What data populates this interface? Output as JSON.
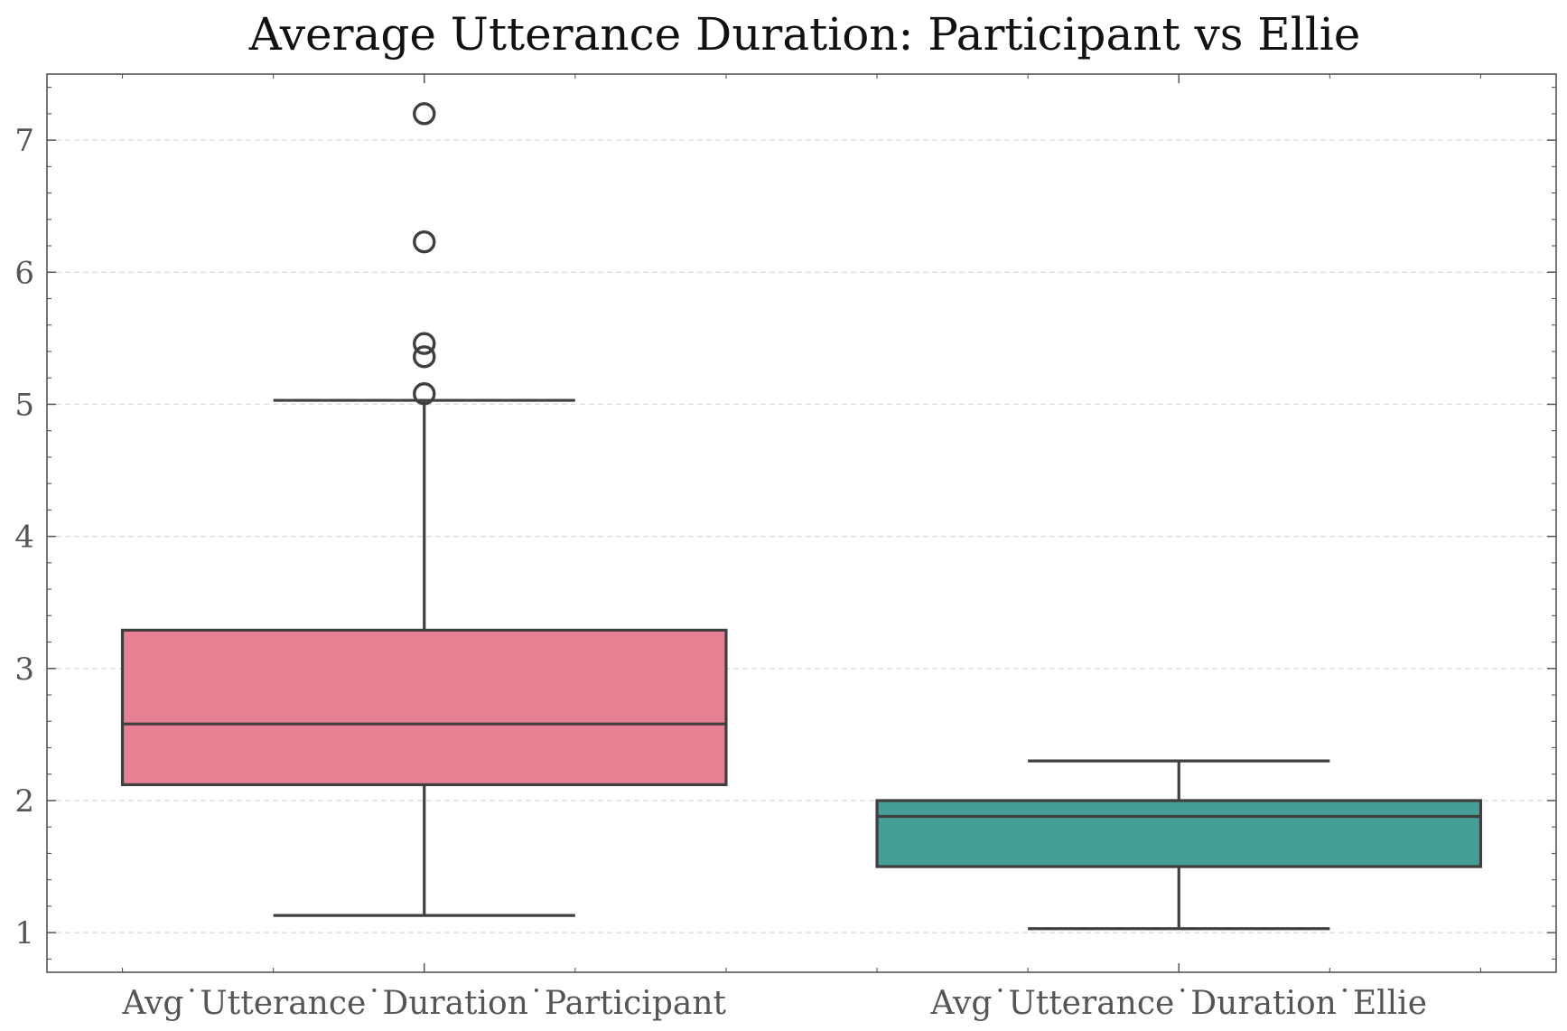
{
  "chart_data": {
    "type": "box",
    "title": "Average Utterance Duration: Participant vs Ellie",
    "xlabel": "",
    "ylabel": "",
    "ylim": [
      0.7,
      7.5
    ],
    "yticks": [
      1,
      2,
      3,
      4,
      5,
      6,
      7
    ],
    "grid": "horizontal-dashed",
    "categories": [
      "Avg˙Utterance˙Duration˙Participant",
      "Avg˙Utterance˙Duration˙Ellie"
    ],
    "boxes": [
      {
        "category": "Avg˙Utterance˙Duration˙Participant",
        "whisker_low": 1.13,
        "q1": 2.12,
        "median": 2.58,
        "q3": 3.29,
        "whisker_high": 5.03,
        "outliers": [
          5.08,
          5.36,
          5.46,
          6.23,
          7.2
        ],
        "color": "#e88093"
      },
      {
        "category": "Avg˙Utterance˙Duration˙Ellie",
        "whisker_low": 1.03,
        "q1": 1.5,
        "median": 1.88,
        "q3": 2.0,
        "whisker_high": 2.3,
        "outliers": [],
        "color": "#459f97"
      }
    ]
  }
}
